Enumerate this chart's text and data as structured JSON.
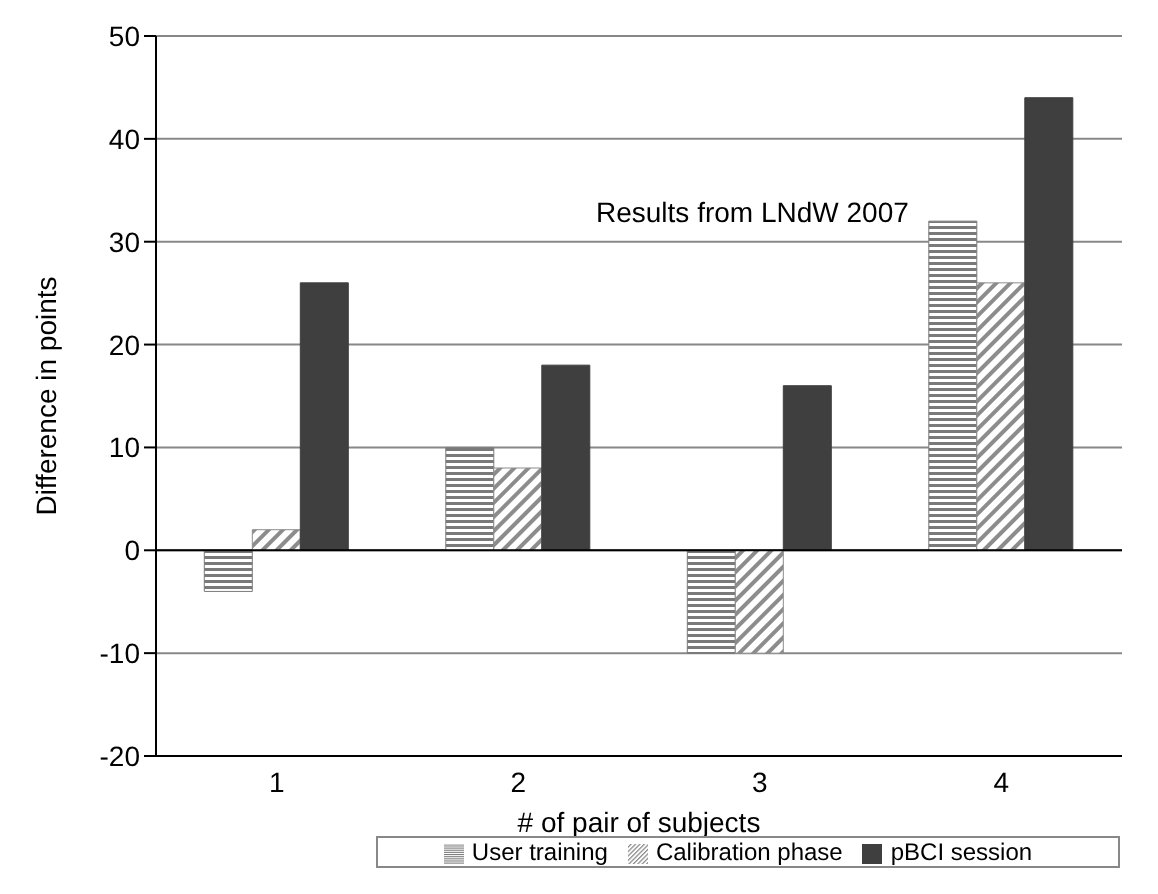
{
  "chart_data": {
    "type": "bar",
    "xlabel": "# of pair of subjects",
    "ylabel": "Difference in points",
    "annotations": [
      "Results from LNdW 2007"
    ],
    "categories": [
      "1",
      "2",
      "3",
      "4"
    ],
    "series": [
      {
        "name": "User training",
        "color": "#7a7a7a",
        "values": [
          -4,
          10,
          -10,
          32
        ]
      },
      {
        "name": "Calibration phase",
        "color": "#8c8c8c",
        "values": [
          2,
          8,
          -10,
          26
        ]
      },
      {
        "name": "pBCI session",
        "color": "#3f3f3f",
        "values": [
          26,
          18,
          16,
          44
        ]
      }
    ],
    "ylim": [
      -20,
      50
    ],
    "yticks": [
      -20,
      -10,
      0,
      10,
      20,
      30,
      40,
      50
    ],
    "grid": "y",
    "legend": "bottom"
  }
}
